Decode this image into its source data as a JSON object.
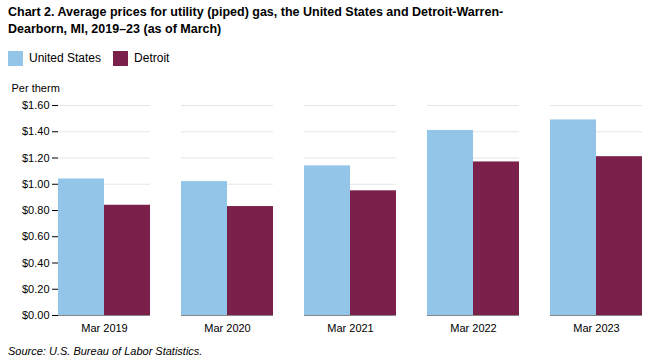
{
  "chart_data": {
    "type": "bar",
    "title": "Chart 2. Average prices for utility (piped) gas, the United States and Detroit-Warren-\nDearborn, MI, 2019–23 (as of March)",
    "ylabel": "Per therm",
    "source": "Source: U.S. Bureau of Labor Statistics.",
    "categories": [
      "Mar 2019",
      "Mar 2020",
      "Mar 2021",
      "Mar 2022",
      "Mar 2023"
    ],
    "series": [
      {
        "name": "United States",
        "color": "#92C5E8",
        "values": [
          1.04,
          1.02,
          1.14,
          1.41,
          1.49
        ]
      },
      {
        "name": "Detroit",
        "color": "#7B1F4B",
        "values": [
          0.84,
          0.83,
          0.95,
          1.17,
          1.21
        ]
      }
    ],
    "ylim": [
      0.0,
      1.6
    ],
    "yticks": [
      {
        "value": 0.0,
        "label": "$0.00"
      },
      {
        "value": 0.2,
        "label": "$0.20"
      },
      {
        "value": 0.4,
        "label": "$0.40"
      },
      {
        "value": 0.6,
        "label": "$0.60"
      },
      {
        "value": 0.8,
        "label": "$0.80"
      },
      {
        "value": 1.0,
        "label": "$1.00"
      },
      {
        "value": 1.2,
        "label": "$1.20"
      },
      {
        "value": 1.4,
        "label": "$1.40"
      },
      {
        "value": 1.6,
        "label": "$1.60"
      }
    ],
    "grid": true,
    "legend": "top"
  }
}
